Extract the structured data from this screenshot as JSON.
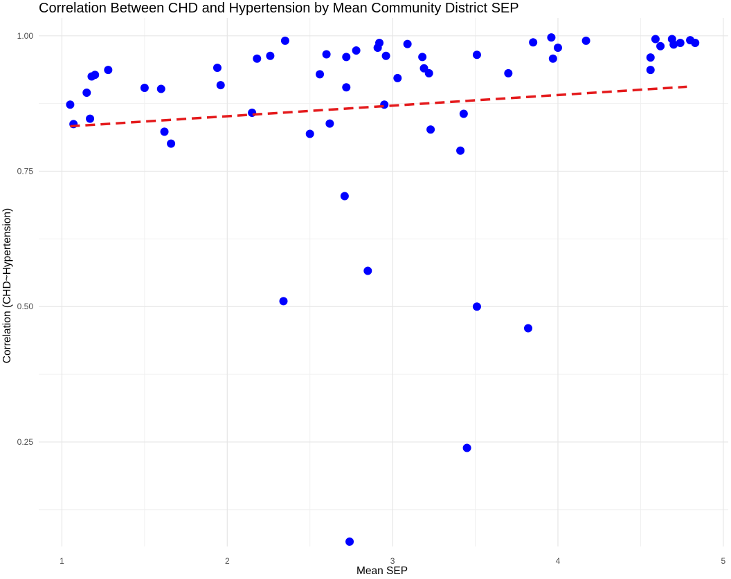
{
  "chart_data": {
    "type": "scatter",
    "title": "Correlation Between CHD and Hypertension by Mean Community District SEP",
    "xlabel": "Mean SEP",
    "ylabel": "Correlation (CHD~Hypertension)",
    "xlim": [
      0.86,
      5.03
    ],
    "ylim": [
      0.057,
      1.033
    ],
    "x_ticks": [
      1,
      2,
      3,
      4,
      5
    ],
    "x_tick_labels": [
      "1",
      "2",
      "3",
      "4",
      "5"
    ],
    "y_ticks": [
      0.25,
      0.5,
      0.75,
      1.0
    ],
    "y_tick_labels": [
      "0.25",
      "0.50",
      "0.75",
      "1.00"
    ],
    "grid": true,
    "legend": "none",
    "point_color": "#0000ff",
    "trend_color": "#e41a1c",
    "trend_line": {
      "x": [
        1.05,
        4.78
      ],
      "y": [
        0.833,
        0.906
      ],
      "style": "dashed"
    },
    "points": [
      {
        "x": 1.05,
        "y": 0.873
      },
      {
        "x": 1.07,
        "y": 0.837
      },
      {
        "x": 1.15,
        "y": 0.895
      },
      {
        "x": 1.17,
        "y": 0.847
      },
      {
        "x": 1.18,
        "y": 0.925
      },
      {
        "x": 1.2,
        "y": 0.928
      },
      {
        "x": 1.28,
        "y": 0.937
      },
      {
        "x": 1.5,
        "y": 0.904
      },
      {
        "x": 1.6,
        "y": 0.902
      },
      {
        "x": 1.62,
        "y": 0.823
      },
      {
        "x": 1.66,
        "y": 0.801
      },
      {
        "x": 1.94,
        "y": 0.941
      },
      {
        "x": 1.96,
        "y": 0.909
      },
      {
        "x": 2.15,
        "y": 0.858
      },
      {
        "x": 2.18,
        "y": 0.958
      },
      {
        "x": 2.26,
        "y": 0.963
      },
      {
        "x": 2.34,
        "y": 0.51
      },
      {
        "x": 2.35,
        "y": 0.991
      },
      {
        "x": 2.5,
        "y": 0.819
      },
      {
        "x": 2.56,
        "y": 0.929
      },
      {
        "x": 2.6,
        "y": 0.966
      },
      {
        "x": 2.62,
        "y": 0.838
      },
      {
        "x": 2.71,
        "y": 0.704
      },
      {
        "x": 2.72,
        "y": 0.905
      },
      {
        "x": 2.72,
        "y": 0.961
      },
      {
        "x": 2.74,
        "y": 0.066
      },
      {
        "x": 2.78,
        "y": 0.973
      },
      {
        "x": 2.85,
        "y": 0.566
      },
      {
        "x": 2.91,
        "y": 0.978
      },
      {
        "x": 2.92,
        "y": 0.987
      },
      {
        "x": 2.95,
        "y": 0.873
      },
      {
        "x": 2.96,
        "y": 0.963
      },
      {
        "x": 3.03,
        "y": 0.922
      },
      {
        "x": 3.09,
        "y": 0.985
      },
      {
        "x": 3.18,
        "y": 0.961
      },
      {
        "x": 3.19,
        "y": 0.94
      },
      {
        "x": 3.22,
        "y": 0.931
      },
      {
        "x": 3.23,
        "y": 0.827
      },
      {
        "x": 3.41,
        "y": 0.788
      },
      {
        "x": 3.43,
        "y": 0.856
      },
      {
        "x": 3.45,
        "y": 0.239
      },
      {
        "x": 3.51,
        "y": 0.5
      },
      {
        "x": 3.51,
        "y": 0.965
      },
      {
        "x": 3.7,
        "y": 0.931
      },
      {
        "x": 3.82,
        "y": 0.46
      },
      {
        "x": 3.85,
        "y": 0.988
      },
      {
        "x": 3.96,
        "y": 0.997
      },
      {
        "x": 3.97,
        "y": 0.958
      },
      {
        "x": 4.0,
        "y": 0.978
      },
      {
        "x": 4.17,
        "y": 0.991
      },
      {
        "x": 4.56,
        "y": 0.96
      },
      {
        "x": 4.56,
        "y": 0.937
      },
      {
        "x": 4.59,
        "y": 0.994
      },
      {
        "x": 4.62,
        "y": 0.981
      },
      {
        "x": 4.69,
        "y": 0.994
      },
      {
        "x": 4.7,
        "y": 0.984
      },
      {
        "x": 4.74,
        "y": 0.987
      },
      {
        "x": 4.8,
        "y": 0.992
      },
      {
        "x": 4.83,
        "y": 0.987
      }
    ]
  }
}
